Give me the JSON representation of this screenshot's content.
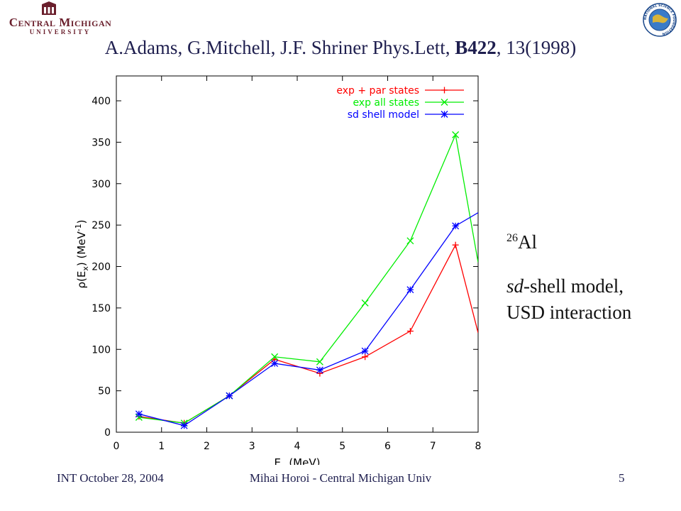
{
  "header": {
    "institution_name": "Central Michigan",
    "institution_sub": "UNIVERSITY",
    "nsf_text": "NATIONAL SCIENCE FOUNDATION"
  },
  "citation": {
    "authors_journal": "A.Adams, G.Mitchell, J.F. Shriner Phys.Lett, ",
    "volume": "B422",
    "pages_year": ", 13(1998)"
  },
  "side": {
    "nucleus_mass": "26",
    "nucleus_symbol": "Al",
    "model_italic": "sd",
    "model_rest": "-shell model,",
    "interaction": "USD interaction"
  },
  "footer": {
    "left": "INT  October 28, 2004",
    "center": "Mihai Horoi - Central Michigan Univ",
    "right": "5"
  },
  "colors": {
    "red": "#ff0000",
    "green": "#00ee00",
    "blue": "#0000ff"
  },
  "chart_data": {
    "type": "line",
    "xlabel": "E_x (MeV)",
    "ylabel": "ρ(E_x) (MeV^-1)",
    "xlim": [
      0,
      8
    ],
    "ylim": [
      0,
      430
    ],
    "xticks": [
      0,
      1,
      2,
      3,
      4,
      5,
      6,
      7,
      8
    ],
    "yticks": [
      0,
      50,
      100,
      150,
      200,
      250,
      300,
      350,
      400
    ],
    "legend_position": "top-right",
    "grid": false,
    "series": [
      {
        "name": "exp + par states",
        "color": "#ff0000",
        "marker": "plus",
        "x": [
          0.5,
          1.5,
          2.5,
          3.5,
          4.5,
          5.5,
          6.5,
          7.5,
          8.0
        ],
        "y": [
          19,
          11,
          44,
          88,
          71,
          91,
          122,
          226,
          120
        ]
      },
      {
        "name": "exp all states",
        "color": "#00ee00",
        "marker": "cross",
        "x": [
          0.5,
          1.5,
          2.5,
          3.5,
          4.5,
          5.5,
          6.5,
          7.5,
          8.0
        ],
        "y": [
          18,
          11,
          44,
          91,
          85,
          156,
          231,
          359,
          205
        ]
      },
      {
        "name": "sd shell model",
        "color": "#0000ff",
        "marker": "star",
        "x": [
          0.5,
          1.5,
          2.5,
          3.5,
          4.5,
          5.5,
          6.5,
          7.5,
          8.0
        ],
        "y": [
          22,
          8,
          44,
          83,
          75,
          98,
          172,
          249,
          265
        ]
      }
    ]
  }
}
